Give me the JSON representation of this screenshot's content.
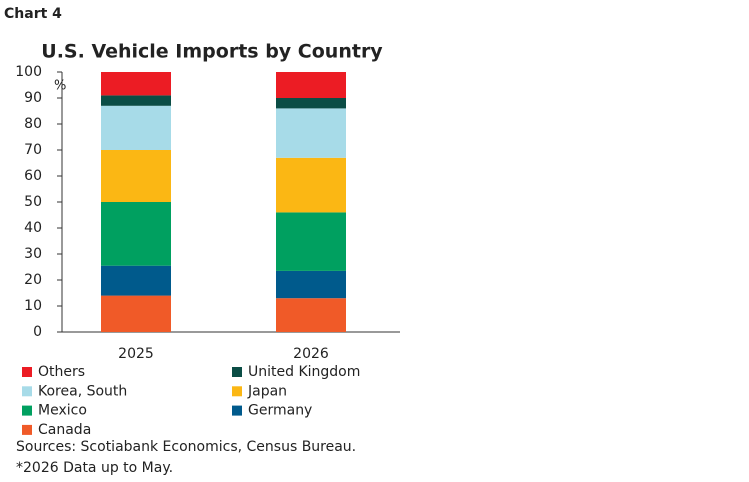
{
  "chart_data": {
    "type": "stacked_bar",
    "label": "Chart 4",
    "title": "U.S. Vehicle Imports by Country",
    "y_unit": "%",
    "categories": [
      "2025",
      "2026"
    ],
    "series": [
      {
        "name": "Canada",
        "color": "#f05a28",
        "values": [
          14,
          13
        ]
      },
      {
        "name": "Germany",
        "color": "#005a8c",
        "values": [
          11.5,
          10.5
        ]
      },
      {
        "name": "Mexico",
        "color": "#00a060",
        "values": [
          24.5,
          22.5
        ]
      },
      {
        "name": "Japan",
        "color": "#fbb714",
        "values": [
          20,
          21
        ]
      },
      {
        "name": "Korea, South",
        "color": "#a7dbe8",
        "values": [
          17,
          19
        ]
      },
      {
        "name": "United Kingdom",
        "color": "#0b4d45",
        "values": [
          4,
          4
        ]
      },
      {
        "name": "Others",
        "color": "#ec1c24",
        "values": [
          9,
          10
        ]
      }
    ],
    "ylim": [
      0,
      100
    ],
    "yticks": [
      0,
      10,
      20,
      30,
      40,
      50,
      60,
      70,
      80,
      90,
      100
    ],
    "notes": [
      "Sources: Scotiabank Economics, Census Bureau.",
      "*2026 Data up to May."
    ]
  }
}
